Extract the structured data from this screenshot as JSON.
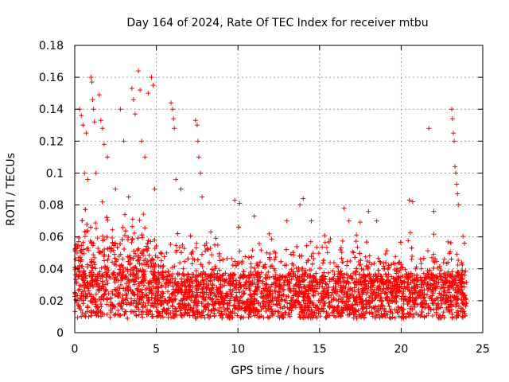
{
  "chart_data": {
    "type": "scatter",
    "title": "Day 164 of 2024, Rate Of TEC Index for receiver mtbu",
    "xlabel": "GPS time / hours",
    "ylabel": "ROTI / TECUs",
    "xlim": [
      0,
      25
    ],
    "ylim": [
      0,
      0.18
    ],
    "xticks": [
      0,
      5,
      10,
      15,
      20,
      25
    ],
    "xtick_labels": [
      "0",
      "5",
      "10",
      "15",
      "20",
      "25"
    ],
    "yticks": [
      0,
      0.02,
      0.04,
      0.06,
      0.08,
      0.1,
      0.12,
      0.14,
      0.16,
      0.18
    ],
    "ytick_labels": [
      "0",
      "0.02",
      "0.04",
      "0.06",
      "0.08",
      "0.1",
      "0.12",
      "0.14",
      "0.16",
      "0.18"
    ],
    "grid": true,
    "marker": "+",
    "color": "#ff0000",
    "data_x_range": [
      0,
      24
    ],
    "series": [
      {
        "name": "ROTI",
        "points": [
          [
            0.05,
            0.046
          ],
          [
            0.3,
            0.14
          ],
          [
            0.4,
            0.136
          ],
          [
            0.5,
            0.13
          ],
          [
            0.6,
            0.1
          ],
          [
            0.7,
            0.125
          ],
          [
            0.8,
            0.096
          ],
          [
            1.0,
            0.16
          ],
          [
            1.05,
            0.157
          ],
          [
            1.1,
            0.146
          ],
          [
            1.15,
            0.14
          ],
          [
            1.2,
            0.132
          ],
          [
            1.3,
            0.1
          ],
          [
            1.5,
            0.149
          ],
          [
            1.6,
            0.133
          ],
          [
            1.7,
            0.128
          ],
          [
            1.8,
            0.118
          ],
          [
            2.0,
            0.11
          ],
          [
            2.5,
            0.09
          ],
          [
            2.8,
            0.14
          ],
          [
            3.0,
            0.12
          ],
          [
            3.3,
            0.085
          ],
          [
            3.5,
            0.153
          ],
          [
            3.6,
            0.146
          ],
          [
            3.7,
            0.137
          ],
          [
            3.9,
            0.164
          ],
          [
            4.0,
            0.152
          ],
          [
            4.1,
            0.12
          ],
          [
            4.3,
            0.11
          ],
          [
            4.5,
            0.15
          ],
          [
            4.7,
            0.16
          ],
          [
            4.8,
            0.155
          ],
          [
            4.9,
            0.09
          ],
          [
            5.9,
            0.144
          ],
          [
            6.0,
            0.14
          ],
          [
            6.05,
            0.134
          ],
          [
            6.1,
            0.128
          ],
          [
            6.2,
            0.096
          ],
          [
            6.5,
            0.09
          ],
          [
            7.4,
            0.133
          ],
          [
            7.5,
            0.13
          ],
          [
            7.55,
            0.12
          ],
          [
            7.6,
            0.11
          ],
          [
            7.7,
            0.1
          ],
          [
            7.8,
            0.085
          ],
          [
            9.8,
            0.083
          ],
          [
            10.1,
            0.081
          ],
          [
            11.0,
            0.073
          ],
          [
            13.0,
            0.07
          ],
          [
            13.8,
            0.08
          ],
          [
            14.0,
            0.084
          ],
          [
            14.5,
            0.07
          ],
          [
            16.5,
            0.078
          ],
          [
            16.8,
            0.07
          ],
          [
            18.0,
            0.076
          ],
          [
            18.5,
            0.07
          ],
          [
            20.5,
            0.083
          ],
          [
            20.7,
            0.082
          ],
          [
            21.7,
            0.128
          ],
          [
            22.0,
            0.076
          ],
          [
            23.1,
            0.14
          ],
          [
            23.15,
            0.134
          ],
          [
            23.2,
            0.125
          ],
          [
            23.25,
            0.12
          ],
          [
            23.3,
            0.104
          ],
          [
            23.35,
            0.1
          ],
          [
            23.4,
            0.093
          ],
          [
            23.45,
            0.087
          ],
          [
            23.5,
            0.08
          ]
        ]
      }
    ]
  }
}
